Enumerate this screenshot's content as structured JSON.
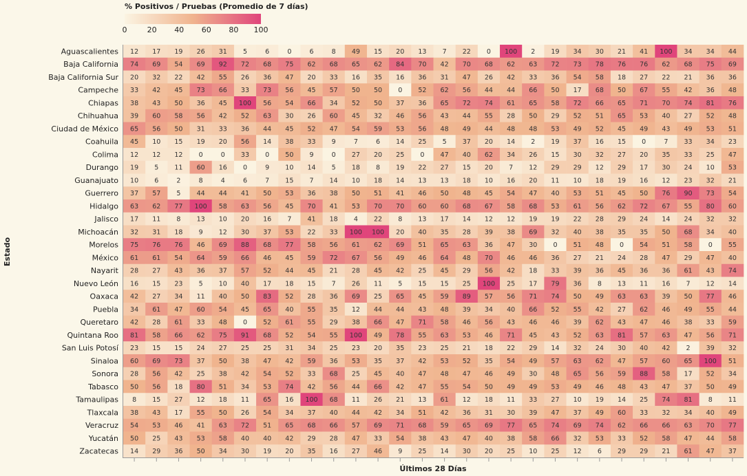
{
  "chart_data": {
    "type": "heatmap",
    "legend_title": "% Positivos / Pruebas (Promedio de 7 días)",
    "legend_ticks": [
      0,
      20,
      40,
      60,
      80,
      100
    ],
    "color_scale": {
      "min": 0,
      "max": 100,
      "low_color": "#fbf4e2",
      "mid_color": "#f0b48e",
      "high_color": "#e0457b"
    },
    "xlabel": "Últimos 28 Días",
    "ylabel": "Estado",
    "y_categories": [
      "Aguascalientes",
      "Baja California",
      "Baja California Sur",
      "Campeche",
      "Chiapas",
      "Chihuahua",
      "Ciudad de México",
      "Coahuila",
      "Colima",
      "Durango",
      "Guanajuato",
      "Guerrero",
      "Hidalgo",
      "Jalisco",
      "Michoacán",
      "Morelos",
      "México",
      "Nayarit",
      "Nuevo León",
      "Oaxaca",
      "Puebla",
      "Queretaro",
      "Quintana Roo",
      "San Luis Potosí",
      "Sinaloa",
      "Sonora",
      "Tabasco",
      "Tamaulipas",
      "Tlaxcala",
      "Veracruz",
      "Yucatán",
      "Zacatecas"
    ],
    "values": [
      [
        12,
        17,
        19,
        26,
        31,
        5,
        6,
        0,
        6,
        8,
        49,
        15,
        20,
        13,
        7,
        22,
        0,
        100,
        2,
        19,
        34,
        30,
        21,
        41,
        100,
        34,
        34,
        44
      ],
      [
        74,
        69,
        54,
        69,
        92,
        72,
        68,
        75,
        62,
        68,
        65,
        62,
        84,
        70,
        42,
        70,
        68,
        62,
        63,
        72,
        73,
        78,
        76,
        76,
        62,
        68,
        75,
        69
      ],
      [
        20,
        32,
        22,
        42,
        55,
        26,
        36,
        47,
        20,
        33,
        16,
        35,
        16,
        36,
        31,
        47,
        26,
        42,
        33,
        36,
        54,
        58,
        18,
        27,
        22,
        21,
        36,
        36
      ],
      [
        33,
        42,
        45,
        73,
        66,
        33,
        73,
        56,
        45,
        57,
        50,
        50,
        0,
        52,
        62,
        56,
        44,
        44,
        66,
        50,
        17,
        68,
        50,
        67,
        55,
        42,
        36,
        48
      ],
      [
        38,
        43,
        50,
        36,
        45,
        100,
        56,
        54,
        66,
        34,
        52,
        50,
        37,
        36,
        65,
        72,
        74,
        61,
        65,
        58,
        72,
        66,
        65,
        71,
        70,
        74,
        81,
        76
      ],
      [
        39,
        60,
        58,
        56,
        42,
        52,
        63,
        30,
        26,
        60,
        45,
        32,
        46,
        56,
        43,
        44,
        55,
        28,
        50,
        29,
        52,
        51,
        65,
        53,
        40,
        27,
        52,
        48
      ],
      [
        65,
        56,
        50,
        31,
        33,
        36,
        44,
        45,
        52,
        47,
        54,
        59,
        53,
        56,
        48,
        49,
        44,
        48,
        48,
        53,
        49,
        52,
        45,
        49,
        43,
        49,
        53,
        51
      ],
      [
        45,
        10,
        15,
        19,
        20,
        56,
        14,
        38,
        33,
        9,
        7,
        6,
        14,
        25,
        5,
        37,
        20,
        14,
        2,
        19,
        37,
        16,
        15,
        0,
        7,
        33,
        34,
        23
      ],
      [
        12,
        12,
        12,
        0,
        0,
        33,
        0,
        50,
        9,
        0,
        27,
        20,
        25,
        0,
        47,
        40,
        62,
        34,
        26,
        15,
        30,
        32,
        27,
        20,
        35,
        33,
        25,
        47
      ],
      [
        19,
        5,
        11,
        60,
        16,
        0,
        9,
        10,
        14,
        5,
        18,
        8,
        19,
        22,
        27,
        15,
        20,
        7,
        12,
        29,
        29,
        12,
        29,
        17,
        30,
        24,
        10,
        53
      ],
      [
        10,
        6,
        2,
        8,
        4,
        6,
        7,
        15,
        7,
        14,
        10,
        18,
        14,
        13,
        13,
        18,
        10,
        16,
        20,
        11,
        10,
        18,
        19,
        16,
        12,
        23,
        32,
        21
      ],
      [
        37,
        57,
        5,
        44,
        44,
        41,
        50,
        53,
        36,
        38,
        50,
        51,
        41,
        46,
        50,
        48,
        45,
        54,
        47,
        40,
        53,
        51,
        45,
        50,
        76,
        90,
        73,
        54
      ],
      [
        63,
        62,
        77,
        100,
        58,
        63,
        56,
        45,
        70,
        41,
        53,
        70,
        70,
        60,
        60,
        68,
        67,
        58,
        68,
        53,
        61,
        56,
        62,
        72,
        67,
        55,
        80,
        60
      ],
      [
        17,
        11,
        8,
        13,
        10,
        20,
        16,
        7,
        41,
        18,
        4,
        22,
        8,
        13,
        17,
        14,
        12,
        12,
        19,
        19,
        22,
        28,
        29,
        24,
        14,
        24,
        32,
        32
      ],
      [
        32,
        31,
        18,
        9,
        12,
        30,
        37,
        53,
        22,
        33,
        100,
        100,
        20,
        40,
        35,
        28,
        39,
        38,
        69,
        32,
        40,
        38,
        35,
        35,
        50,
        68,
        34,
        40
      ],
      [
        75,
        76,
        76,
        46,
        69,
        88,
        68,
        77,
        58,
        56,
        61,
        62,
        69,
        51,
        65,
        63,
        36,
        47,
        30,
        0,
        51,
        48,
        0,
        54,
        51,
        58,
        0,
        55
      ],
      [
        61,
        61,
        54,
        64,
        59,
        66,
        46,
        45,
        59,
        72,
        67,
        56,
        49,
        46,
        64,
        48,
        70,
        46,
        46,
        36,
        27,
        21,
        24,
        28,
        47,
        29,
        47,
        40
      ],
      [
        28,
        27,
        43,
        36,
        37,
        57,
        52,
        44,
        45,
        21,
        28,
        45,
        42,
        25,
        45,
        29,
        56,
        42,
        18,
        33,
        39,
        36,
        45,
        36,
        36,
        61,
        43,
        74
      ],
      [
        16,
        15,
        23,
        5,
        10,
        40,
        17,
        18,
        15,
        7,
        26,
        11,
        5,
        15,
        15,
        25,
        100,
        25,
        17,
        79,
        36,
        8,
        13,
        11,
        16,
        7,
        12,
        14
      ],
      [
        42,
        27,
        34,
        11,
        40,
        50,
        83,
        52,
        28,
        36,
        69,
        25,
        65,
        45,
        59,
        89,
        57,
        56,
        71,
        74,
        50,
        49,
        63,
        63,
        39,
        50,
        77,
        46
      ],
      [
        34,
        61,
        47,
        60,
        54,
        45,
        65,
        40,
        55,
        35,
        12,
        44,
        44,
        43,
        48,
        39,
        34,
        40,
        66,
        52,
        55,
        42,
        27,
        62,
        46,
        49,
        55,
        44
      ],
      [
        42,
        28,
        61,
        33,
        48,
        0,
        52,
        61,
        55,
        29,
        38,
        66,
        47,
        71,
        58,
        46,
        56,
        43,
        46,
        46,
        39,
        62,
        43,
        47,
        46,
        38,
        33,
        59
      ],
      [
        81,
        58,
        66,
        62,
        75,
        91,
        68,
        52,
        54,
        55,
        100,
        49,
        78,
        55,
        63,
        53,
        46,
        71,
        45,
        43,
        52,
        63,
        81,
        57,
        63,
        47,
        56,
        71
      ],
      [
        23,
        15,
        15,
        24,
        27,
        25,
        25,
        31,
        34,
        25,
        23,
        20,
        35,
        23,
        25,
        21,
        18,
        22,
        29,
        14,
        32,
        24,
        30,
        40,
        42,
        2,
        39,
        32
      ],
      [
        60,
        69,
        73,
        37,
        50,
        38,
        47,
        42,
        59,
        36,
        53,
        35,
        37,
        42,
        53,
        52,
        35,
        54,
        49,
        57,
        63,
        62,
        47,
        57,
        60,
        65,
        100,
        51
      ],
      [
        28,
        56,
        42,
        25,
        38,
        42,
        54,
        52,
        33,
        68,
        25,
        45,
        40,
        47,
        48,
        47,
        46,
        49,
        30,
        48,
        65,
        56,
        59,
        88,
        58,
        17,
        52,
        34
      ],
      [
        50,
        56,
        18,
        80,
        51,
        34,
        53,
        74,
        42,
        56,
        44,
        66,
        42,
        47,
        55,
        54,
        50,
        49,
        49,
        53,
        49,
        46,
        48,
        43,
        47,
        37,
        50,
        49
      ],
      [
        8,
        15,
        27,
        12,
        18,
        11,
        65,
        16,
        100,
        68,
        11,
        26,
        21,
        13,
        61,
        12,
        18,
        11,
        33,
        27,
        10,
        19,
        14,
        25,
        74,
        81,
        8,
        11
      ],
      [
        38,
        43,
        17,
        55,
        50,
        26,
        54,
        34,
        37,
        40,
        44,
        42,
        34,
        51,
        42,
        36,
        31,
        30,
        39,
        47,
        37,
        49,
        60,
        33,
        32,
        34,
        40,
        49
      ],
      [
        54,
        53,
        46,
        41,
        63,
        72,
        51,
        65,
        68,
        66,
        57,
        69,
        71,
        68,
        59,
        65,
        69,
        77,
        65,
        74,
        69,
        74,
        62,
        66,
        66,
        63,
        70,
        77
      ],
      [
        50,
        25,
        43,
        53,
        58,
        40,
        40,
        42,
        29,
        28,
        47,
        33,
        54,
        38,
        43,
        47,
        40,
        38,
        58,
        66,
        32,
        53,
        33,
        52,
        58,
        47,
        44,
        58
      ],
      [
        14,
        29,
        36,
        50,
        34,
        30,
        19,
        20,
        35,
        16,
        27,
        46,
        9,
        25,
        14,
        30,
        20,
        25,
        10,
        25,
        12,
        6,
        29,
        29,
        21,
        61,
        47,
        37
      ]
    ]
  }
}
